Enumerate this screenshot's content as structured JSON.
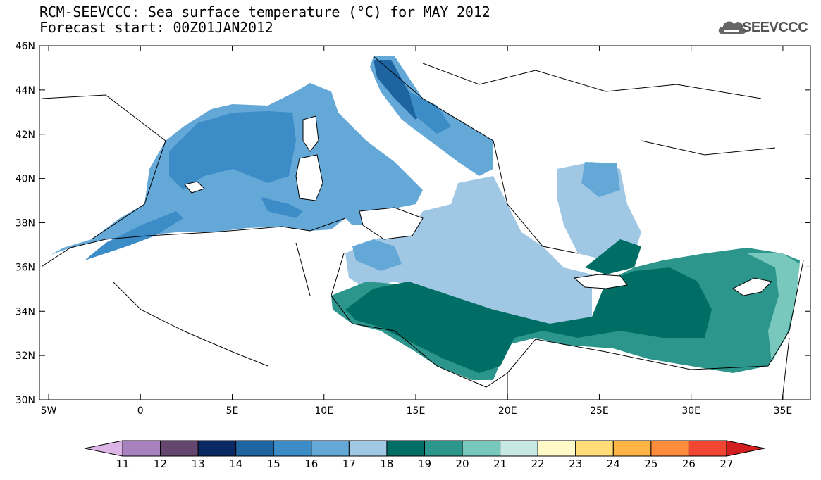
{
  "title": {
    "line1": "RCM-SEEVCCC: Sea surface temperature (°C) for MAY 2012",
    "line2": "Forecast start: 00Z01JAN2012"
  },
  "logo": {
    "text": "SEEVCCC",
    "icon": "cloud-icon"
  },
  "axes": {
    "lon_labels": [
      "5W",
      "0",
      "5E",
      "10E",
      "15E",
      "20E",
      "25E",
      "30E",
      "35E"
    ],
    "lat_labels": [
      "46N",
      "44N",
      "42N",
      "40N",
      "38N",
      "36N",
      "34N",
      "32N",
      "30N"
    ],
    "lon_range": [
      -5.5,
      36.5
    ],
    "lat_range": [
      30,
      46
    ]
  },
  "colorbar": {
    "levels": [
      "11",
      "12",
      "13",
      "14",
      "15",
      "16",
      "17",
      "18",
      "19",
      "20",
      "21",
      "22",
      "23",
      "24",
      "25",
      "26",
      "27"
    ],
    "colors": [
      "#dcb4e6",
      "#a882c0",
      "#64466e",
      "#0a2864",
      "#1e64a0",
      "#3c8cc8",
      "#64a8d8",
      "#a0c8e4",
      "#006e64",
      "#2d968c",
      "#78c8be",
      "#c8e8e4",
      "#fffac8",
      "#ffdc78",
      "#ffb446",
      "#ff8c3c",
      "#f04632",
      "#d21e1e"
    ]
  },
  "colors": {
    "t15": "#3c8cc8",
    "t16": "#64a8d8",
    "t17": "#a0c8e4",
    "t18": "#006e64",
    "t19": "#2d968c",
    "t20": "#78c8be",
    "t14": "#1e64a0",
    "land": "#ffffff",
    "border": "#000000"
  }
}
